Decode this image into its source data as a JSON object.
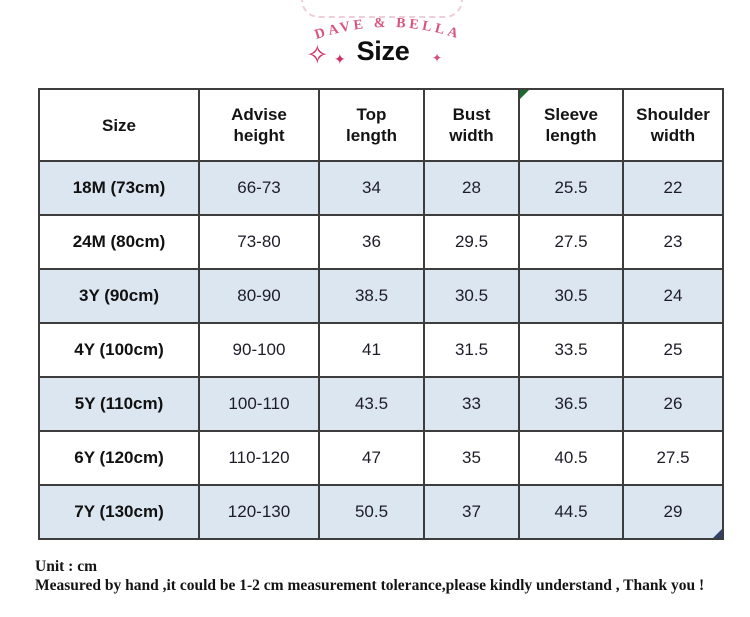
{
  "brand": {
    "name": "DAVE & BELLA"
  },
  "title": "Size",
  "decorations": {
    "sparkle_left_large": "✧",
    "sparkle_left_small": "✦",
    "sparkle_right_small": "✦"
  },
  "table": {
    "columns": [
      "Size",
      "Advise height",
      "Top length",
      "Bust width",
      "Sleeve length",
      "Shoulder width"
    ],
    "rows": [
      [
        "18M (73cm)",
        "66-73",
        "34",
        "28",
        "25.5",
        "22"
      ],
      [
        "24M (80cm)",
        "73-80",
        "36",
        "29.5",
        "27.5",
        "23"
      ],
      [
        "3Y (90cm)",
        "80-90",
        "38.5",
        "30.5",
        "30.5",
        "24"
      ],
      [
        "4Y (100cm)",
        "90-100",
        "41",
        "31.5",
        "33.5",
        "25"
      ],
      [
        "5Y (110cm)",
        "100-110",
        "43.5",
        "33",
        "36.5",
        "26"
      ],
      [
        "6Y (120cm)",
        "110-120",
        "47",
        "35",
        "40.5",
        "27.5"
      ],
      [
        "7Y (130cm)",
        "120-130",
        "50.5",
        "37",
        "44.5",
        "29"
      ]
    ],
    "markers": {
      "green_corner_header_column": 4,
      "blue_corner_last_cell": true
    }
  },
  "footer": {
    "unit_label": "Unit : cm",
    "tolerance_note": "Measured by hand ,it could be 1-2 cm measurement tolerance,please kindly understand , Thank you !"
  },
  "colors": {
    "brand_pink": "#d8547e",
    "sparkle_pink": "#cf2d67",
    "row_alt_blue": "#dce6f1",
    "table_border": "#3d3d3d",
    "green_marker": "#1a6b2d",
    "blue_marker": "#33406b"
  }
}
